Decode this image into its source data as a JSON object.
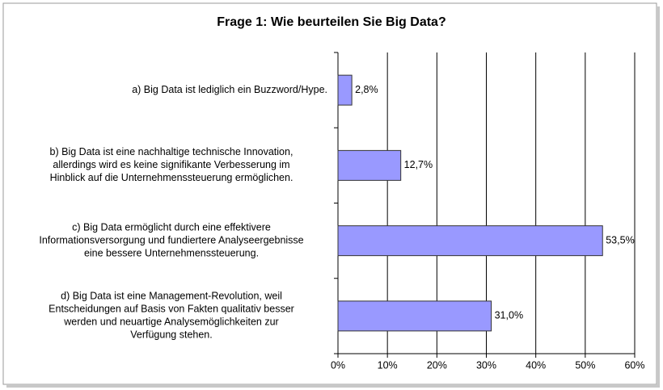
{
  "chart_data": {
    "type": "hbar",
    "title": "Frage 1: Wie beurteilen Sie Big Data?",
    "categories": [
      [
        "a) Big Data ist lediglich ein Buzzword/Hype."
      ],
      [
        "b) Big Data ist eine nachhaltige technische Innovation,",
        "allerdings wird es keine signifikante Verbesserung im",
        "Hinblick auf die Unternehmenssteuerung ermöglichen."
      ],
      [
        "c) Big Data ermöglicht durch eine effektivere",
        "Informationsversorgung und fundiertere Analyseergebnisse",
        "eine bessere Unternehmenssteuerung."
      ],
      [
        "d) Big Data ist eine Management-Revolution, weil",
        "Entscheidungen auf Basis von Fakten qualitativ besser",
        "werden und neuartige Analysemöglichkeiten zur",
        "Verfügung stehen."
      ]
    ],
    "values": [
      2.8,
      12.7,
      53.5,
      31.0
    ],
    "value_labels": [
      "2,8%",
      "12,7%",
      "53,5%",
      "31,0%"
    ],
    "color": "#9999ff",
    "xlim": [
      0,
      60
    ],
    "xticks": [
      {
        "value": 0,
        "label": "0%"
      },
      {
        "value": 10,
        "label": "10%"
      },
      {
        "value": 20,
        "label": "20%"
      },
      {
        "value": 30,
        "label": "30%"
      },
      {
        "value": 40,
        "label": "40%"
      },
      {
        "value": 50,
        "label": "50%"
      },
      {
        "value": 60,
        "label": "60%"
      }
    ],
    "grid": true
  }
}
